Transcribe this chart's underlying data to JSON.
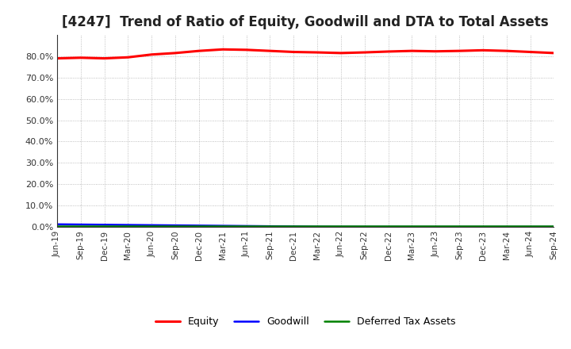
{
  "title": "[4247]  Trend of Ratio of Equity, Goodwill and DTA to Total Assets",
  "x_labels": [
    "Jun-19",
    "Sep-19",
    "Dec-19",
    "Mar-20",
    "Jun-20",
    "Sep-20",
    "Dec-20",
    "Mar-21",
    "Jun-21",
    "Sep-21",
    "Dec-21",
    "Mar-22",
    "Jun-22",
    "Sep-22",
    "Dec-22",
    "Mar-23",
    "Jun-23",
    "Sep-23",
    "Dec-23",
    "Mar-24",
    "Jun-24",
    "Sep-24"
  ],
  "equity": [
    79.0,
    79.3,
    79.0,
    79.5,
    80.8,
    81.5,
    82.5,
    83.2,
    83.0,
    82.5,
    82.0,
    81.8,
    81.5,
    81.8,
    82.2,
    82.5,
    82.3,
    82.5,
    82.8,
    82.5,
    82.0,
    81.5
  ],
  "goodwill": [
    1.2,
    1.1,
    1.0,
    0.9,
    0.8,
    0.7,
    0.6,
    0.5,
    0.4,
    0.3,
    0.2,
    0.1,
    0.05,
    0.04,
    0.03,
    0.02,
    0.02,
    0.02,
    0.02,
    0.02,
    0.02,
    0.02
  ],
  "dta": [
    0.3,
    0.3,
    0.3,
    0.3,
    0.3,
    0.3,
    0.3,
    0.3,
    0.3,
    0.3,
    0.3,
    0.3,
    0.3,
    0.3,
    0.3,
    0.3,
    0.3,
    0.3,
    0.3,
    0.3,
    0.3,
    0.3
  ],
  "equity_color": "#ff0000",
  "goodwill_color": "#0000ff",
  "dta_color": "#008000",
  "ylim": [
    0,
    90
  ],
  "yticks": [
    0.0,
    10.0,
    20.0,
    30.0,
    40.0,
    50.0,
    60.0,
    70.0,
    80.0
  ],
  "background_color": "#ffffff",
  "grid_color": "#999999",
  "title_fontsize": 12,
  "legend_labels": [
    "Equity",
    "Goodwill",
    "Deferred Tax Assets"
  ]
}
